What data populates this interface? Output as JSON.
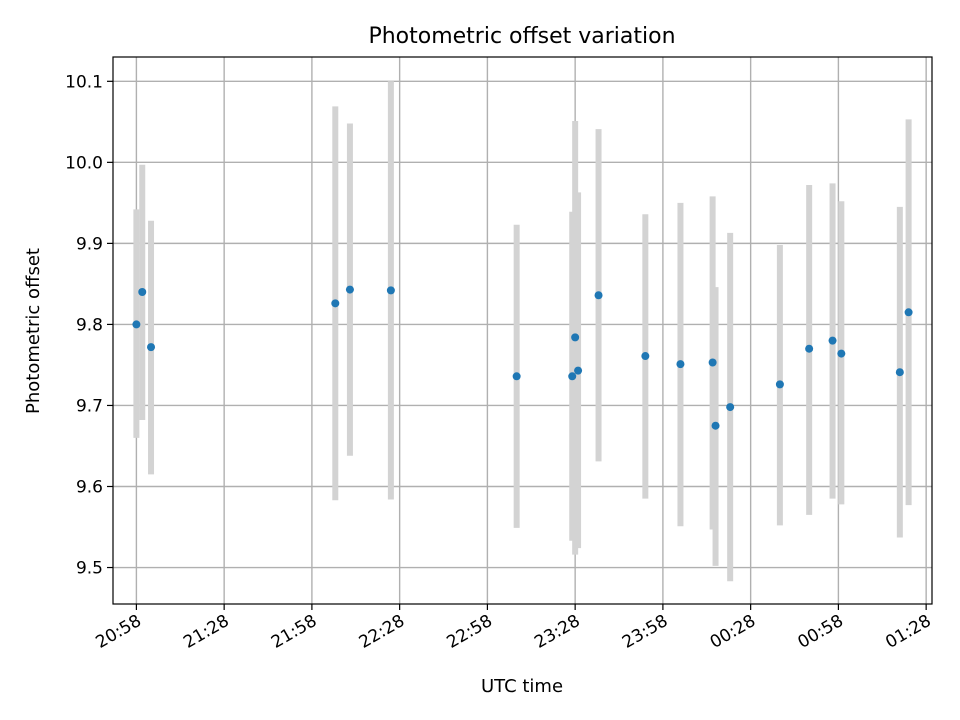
{
  "chart_data": {
    "type": "scatter",
    "title": "Photometric offset variation",
    "xlabel": "UTC time",
    "ylabel": "Photometric offset",
    "x_scale": "time",
    "xlim": [
      "20:50",
      "01:30"
    ],
    "ylim": [
      9.455,
      10.13
    ],
    "x_ticks": [
      "20:58",
      "21:28",
      "21:58",
      "22:28",
      "22:58",
      "23:28",
      "23:58",
      "00:28",
      "00:58",
      "01:28"
    ],
    "y_ticks": [
      "9.5",
      "9.6",
      "9.7",
      "9.8",
      "9.9",
      "10.0",
      "10.1"
    ],
    "grid": true,
    "point_color": "#1f77b4",
    "errorbar_color": "#d3d3d3",
    "series": [
      {
        "x": [
          "20:58",
          "21:00",
          "21:03",
          "22:06",
          "22:11",
          "22:25",
          "23:08",
          "23:27",
          "23:28",
          "23:29",
          "23:36",
          "23:52",
          "00:04",
          "00:15",
          "00:16",
          "00:21",
          "00:38",
          "00:48",
          "00:56",
          "00:59",
          "01:19",
          "01:22"
        ],
        "y": [
          9.8,
          9.84,
          9.772,
          9.826,
          9.843,
          9.842,
          9.736,
          9.736,
          9.784,
          9.743,
          9.836,
          9.761,
          9.751,
          9.753,
          9.675,
          9.698,
          9.726,
          9.77,
          9.78,
          9.764,
          9.741,
          9.815
        ],
        "y_low": [
          9.66,
          9.682,
          9.615,
          9.583,
          9.638,
          9.584,
          9.549,
          9.533,
          9.516,
          9.524,
          9.631,
          9.585,
          9.551,
          9.547,
          9.502,
          9.483,
          9.552,
          9.565,
          9.585,
          9.578,
          9.537,
          9.577
        ],
        "y_high": [
          9.942,
          9.997,
          9.928,
          10.069,
          10.048,
          10.1,
          9.923,
          9.939,
          10.051,
          9.963,
          10.041,
          9.936,
          9.95,
          9.958,
          9.846,
          9.913,
          9.898,
          9.972,
          9.974,
          9.952,
          9.945,
          10.053
        ]
      }
    ]
  }
}
